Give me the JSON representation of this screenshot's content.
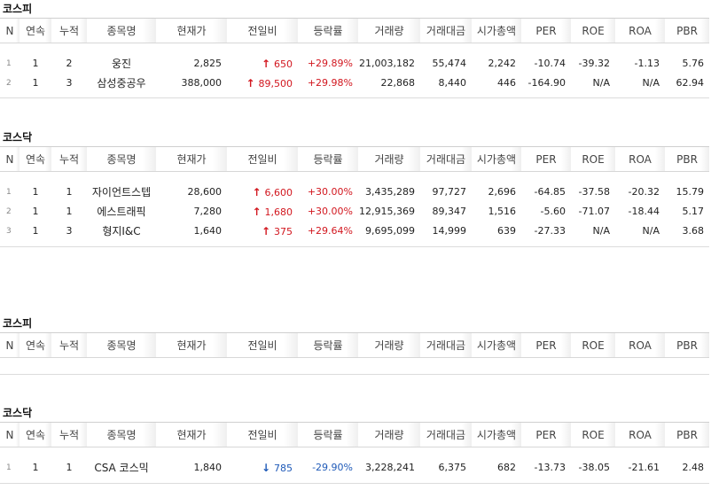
{
  "columns": [
    "N",
    "연속",
    "누적",
    "종목명",
    "현재가",
    "전일비",
    "등락률",
    "거래량",
    "거래대금",
    "시가총액",
    "PER",
    "ROE",
    "ROA",
    "PBR"
  ],
  "colors": {
    "up": "#d2171f",
    "down": "#1f5ab8"
  },
  "sections": [
    {
      "title": "코스피",
      "rows": [
        {
          "n": "1",
          "streak": "1",
          "total": "2",
          "name": "웅진",
          "price": "2,825",
          "dir": "up",
          "change": "650",
          "rate": "+29.89%",
          "volume": "21,003,182",
          "amount": "55,474",
          "mcap": "2,242",
          "per": "-10.74",
          "roe": "-39.32",
          "roa": "-1.13",
          "pbr": "5.76"
        },
        {
          "n": "2",
          "streak": "1",
          "total": "3",
          "name": "삼성중공우",
          "price": "388,000",
          "dir": "up",
          "change": "89,500",
          "rate": "+29.98%",
          "volume": "22,868",
          "amount": "8,440",
          "mcap": "446",
          "per": "-164.90",
          "roe": "N/A",
          "roa": "N/A",
          "pbr": "62.94"
        }
      ]
    },
    {
      "title": "코스닥",
      "rows": [
        {
          "n": "1",
          "streak": "1",
          "total": "1",
          "name": "자이언트스텝",
          "price": "28,600",
          "dir": "up",
          "change": "6,600",
          "rate": "+30.00%",
          "volume": "3,435,289",
          "amount": "97,727",
          "mcap": "2,696",
          "per": "-64.85",
          "roe": "-37.58",
          "roa": "-20.32",
          "pbr": "15.79"
        },
        {
          "n": "2",
          "streak": "1",
          "total": "1",
          "name": "에스트래픽",
          "price": "7,280",
          "dir": "up",
          "change": "1,680",
          "rate": "+30.00%",
          "volume": "12,915,369",
          "amount": "89,347",
          "mcap": "1,516",
          "per": "-5.60",
          "roe": "-71.07",
          "roa": "-18.44",
          "pbr": "5.17"
        },
        {
          "n": "3",
          "streak": "1",
          "total": "3",
          "name": "형지I&C",
          "price": "1,640",
          "dir": "up",
          "change": "375",
          "rate": "+29.64%",
          "volume": "9,695,099",
          "amount": "14,999",
          "mcap": "639",
          "per": "-27.33",
          "roe": "N/A",
          "roa": "N/A",
          "pbr": "3.68"
        }
      ]
    },
    {
      "title": "코스피",
      "rows": []
    },
    {
      "title": "코스닥",
      "rows": [
        {
          "n": "1",
          "streak": "1",
          "total": "1",
          "name": "CSA 코스믹",
          "price": "1,840",
          "dir": "down",
          "change": "785",
          "rate": "-29.90%",
          "volume": "3,228,241",
          "amount": "6,375",
          "mcap": "682",
          "per": "-13.73",
          "roe": "-38.05",
          "roa": "-21.61",
          "pbr": "2.48"
        }
      ]
    }
  ]
}
